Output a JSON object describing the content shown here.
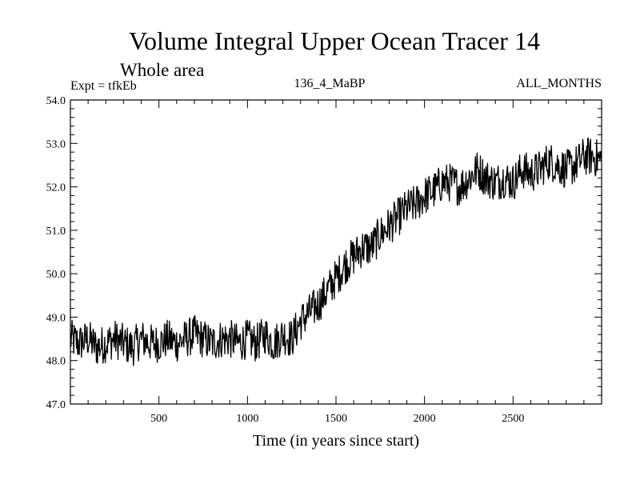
{
  "chart_data": {
    "type": "line",
    "title": "Volume Integral Upper Ocean Tracer 14",
    "subtitle": "Whole area",
    "annotations": {
      "left": "Expt = tfkEb",
      "center": "136_4_MaBP",
      "right": "ALL_MONTHS"
    },
    "xlabel": "Time (in years since start)",
    "ylabel": "",
    "xlim": [
      0,
      3000
    ],
    "ylim": [
      47.0,
      54.0
    ],
    "xticks": [
      500,
      1000,
      1500,
      2000,
      2500
    ],
    "yticks": [
      47.0,
      48.0,
      49.0,
      50.0,
      51.0,
      52.0,
      53.0,
      54.0
    ],
    "ytick_labels": [
      "47.0",
      "48.0",
      "49.0",
      "50.0",
      "51.0",
      "52.0",
      "53.0",
      "54.0"
    ],
    "grid": false,
    "line_color": "#000000",
    "series": [
      {
        "x": [
          0,
          50,
          100,
          150,
          200,
          250,
          300,
          350,
          400,
          450,
          500,
          550,
          600,
          650,
          700,
          750,
          800,
          850,
          900,
          950,
          1000,
          1050,
          1100,
          1150,
          1200,
          1250,
          1300,
          1350,
          1400,
          1450,
          1500,
          1550,
          1600,
          1650,
          1700,
          1750,
          1800,
          1850,
          1900,
          1950,
          2000,
          2050,
          2100,
          2150,
          2200,
          2250,
          2300,
          2350,
          2400,
          2450,
          2500,
          2550,
          2600,
          2650,
          2700,
          2750,
          2800,
          2850,
          2900,
          2950,
          3000
        ],
        "values": [
          48.5,
          48.4,
          48.5,
          48.3,
          48.4,
          48.5,
          48.4,
          48.3,
          48.5,
          48.4,
          48.4,
          48.5,
          48.4,
          48.5,
          48.6,
          48.5,
          48.4,
          48.5,
          48.5,
          48.4,
          48.5,
          48.4,
          48.6,
          48.4,
          48.6,
          48.5,
          48.9,
          49.1,
          49.3,
          49.6,
          49.9,
          50.2,
          50.4,
          50.6,
          50.6,
          50.9,
          51.1,
          51.3,
          51.5,
          51.6,
          51.8,
          51.9,
          52.1,
          52.1,
          52.0,
          52.2,
          52.4,
          52.2,
          52.1,
          52.2,
          52.1,
          52.4,
          52.3,
          52.4,
          52.6,
          52.5,
          52.4,
          52.5,
          52.7,
          52.7,
          52.6
        ]
      }
    ]
  }
}
